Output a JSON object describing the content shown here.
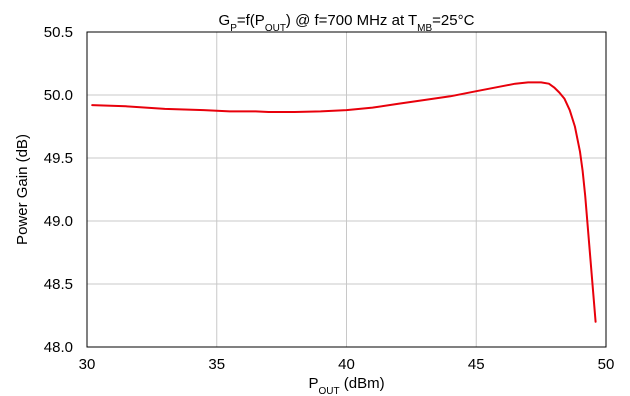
{
  "chart_data": {
    "type": "line",
    "title": {
      "parts": [
        {
          "text": "G",
          "sub": false
        },
        {
          "text": "P",
          "sub": true
        },
        {
          "text": "=f(P",
          "sub": false
        },
        {
          "text": "OUT",
          "sub": true
        },
        {
          "text": ") @ f=700 MHz at  T",
          "sub": false
        },
        {
          "text": "MB",
          "sub": true
        },
        {
          "text": "=25°C",
          "sub": false
        }
      ]
    },
    "xlabel": {
      "parts": [
        {
          "text": "P",
          "sub": false
        },
        {
          "text": "OUT",
          "sub": true
        },
        {
          "text": " (dBm)",
          "sub": false
        }
      ]
    },
    "ylabel": "Power Gain (dB)",
    "xlim": [
      30,
      50
    ],
    "ylim": [
      48.0,
      50.5
    ],
    "xticks": [
      30,
      35,
      40,
      45,
      50
    ],
    "xtick_labels": [
      "30",
      "35",
      "40",
      "45",
      "50"
    ],
    "yticks": [
      48.0,
      48.5,
      49.0,
      49.5,
      50.0,
      50.5
    ],
    "ytick_labels": [
      "48.0",
      "48.5",
      "49.0",
      "49.5",
      "50.0",
      "50.5"
    ],
    "grid": true,
    "line_color": "#e8000b",
    "series": [
      {
        "x": [
          30.2,
          31.5,
          33.0,
          34.5,
          35.5,
          36.5,
          37.0,
          38.0,
          39.0,
          40.0,
          41.0,
          42.0,
          43.0,
          44.0,
          45.0,
          46.0,
          46.5,
          47.0,
          47.5,
          47.8,
          48.0,
          48.2,
          48.4,
          48.6,
          48.8,
          49.0,
          49.1,
          49.2,
          49.3,
          49.4,
          49.5,
          49.6
        ],
        "y": [
          49.92,
          49.91,
          49.89,
          49.88,
          49.87,
          49.87,
          49.865,
          49.865,
          49.87,
          49.88,
          49.9,
          49.93,
          49.96,
          49.99,
          50.03,
          50.07,
          50.09,
          50.1,
          50.1,
          50.09,
          50.06,
          50.02,
          49.97,
          49.88,
          49.75,
          49.55,
          49.4,
          49.2,
          48.95,
          48.7,
          48.45,
          48.2
        ]
      }
    ]
  }
}
